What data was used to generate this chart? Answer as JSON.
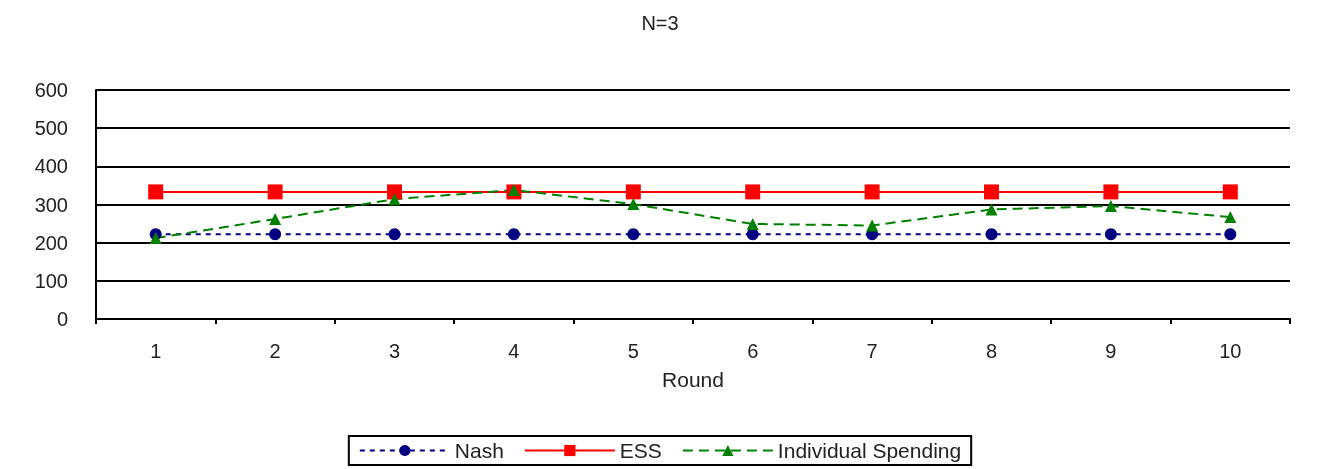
{
  "chart_data": {
    "type": "line",
    "title": "N=3",
    "xlabel": "Round",
    "categories": [
      "1",
      "2",
      "3",
      "4",
      "5",
      "6",
      "7",
      "8",
      "9",
      "10"
    ],
    "series": [
      {
        "name": "Nash",
        "color": "#000080",
        "values": [
          222,
          222,
          222,
          222,
          222,
          222,
          222,
          222,
          222,
          222
        ],
        "marker": "circle",
        "line_style": "dotted"
      },
      {
        "name": "ESS",
        "color": "#ff0000",
        "values": [
          333,
          333,
          333,
          333,
          333,
          333,
          333,
          333,
          333,
          333
        ],
        "marker": "square",
        "line_style": "solid"
      },
      {
        "name": "Individual Spending",
        "color": "#008000",
        "values": [
          212,
          262,
          314,
          338,
          301,
          249,
          245,
          287,
          296,
          267
        ],
        "marker": "triangle",
        "line_style": "dashed"
      }
    ],
    "ylim": [
      0,
      600
    ],
    "yticks": [
      0,
      100,
      200,
      300,
      400,
      500,
      600
    ],
    "grid": "y",
    "legend": "bottom"
  }
}
